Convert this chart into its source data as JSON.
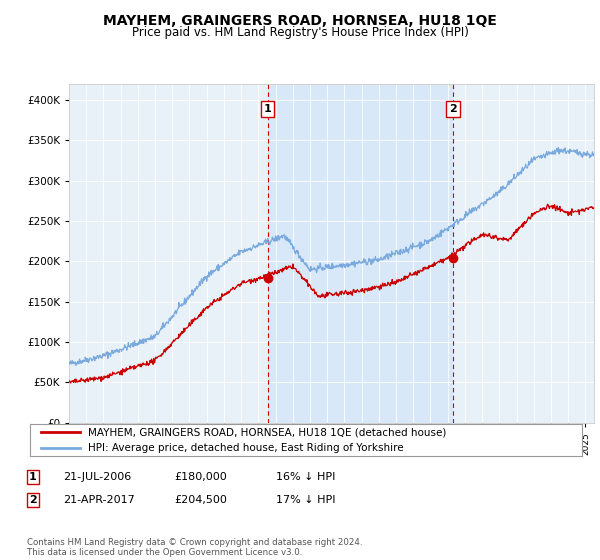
{
  "title": "MAYHEM, GRAINGERS ROAD, HORNSEA, HU18 1QE",
  "subtitle": "Price paid vs. HM Land Registry's House Price Index (HPI)",
  "legend_line1": "MAYHEM, GRAINGERS ROAD, HORNSEA, HU18 1QE (detached house)",
  "legend_line2": "HPI: Average price, detached house, East Riding of Yorkshire",
  "annotation1": {
    "label": "1",
    "date": "21-JUL-2006",
    "price": "£180,000",
    "note": "16% ↓ HPI"
  },
  "annotation2": {
    "label": "2",
    "date": "21-APR-2017",
    "price": "£204,500",
    "note": "17% ↓ HPI"
  },
  "footer": "Contains HM Land Registry data © Crown copyright and database right 2024.\nThis data is licensed under the Open Government Licence v3.0.",
  "sale1_x": 2006.55,
  "sale1_y": 180000,
  "sale2_x": 2017.3,
  "sale2_y": 204500,
  "red_color": "#cc0000",
  "blue_color": "#7aaadd",
  "shade_color": "#d8e8f8",
  "background_color": "#e8f0f8",
  "plot_bg": "#ffffff",
  "ylim": [
    0,
    420000
  ],
  "xlim_start": 1995,
  "xlim_end": 2025.5
}
